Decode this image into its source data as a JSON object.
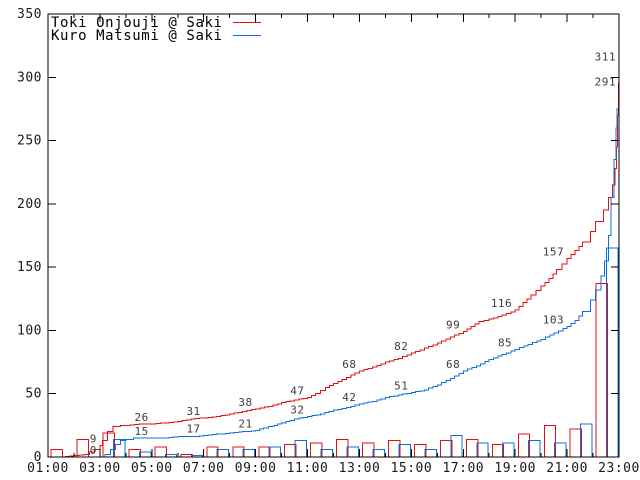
{
  "chart_data": {
    "type": "line",
    "legend": [
      {
        "label": "Toki Onjouji @ Saki",
        "color": "#e01010"
      },
      {
        "label": "Kuro Matsumi @ Saki",
        "color": "#0d6fdd"
      }
    ],
    "x_axis": {
      "hours_min": 1,
      "hours_max": 23,
      "major_tick_labels": [
        "01:00",
        "03:00",
        "05:00",
        "07:00",
        "09:00",
        "11:00",
        "13:00",
        "15:00",
        "17:00",
        "19:00",
        "21:00",
        "23:00"
      ]
    },
    "y_axis": {
      "min": 0,
      "max": 350,
      "tick_step": 50,
      "tick_labels": [
        "0",
        "50",
        "100",
        "150",
        "200",
        "250",
        "300",
        "350"
      ]
    },
    "series": [
      {
        "name": "Toki Onjouji @ Saki",
        "color": "#e01010",
        "points": [
          [
            1,
            0
          ],
          [
            1.5,
            0
          ],
          [
            2,
            1
          ],
          [
            2.4,
            2
          ],
          [
            2.6,
            4
          ],
          [
            2.8,
            6
          ],
          [
            3,
            9
          ],
          [
            3.1,
            13
          ],
          [
            3.3,
            20
          ],
          [
            3.5,
            24
          ],
          [
            3.8,
            25
          ],
          [
            4,
            25
          ],
          [
            4.5,
            26
          ],
          [
            5,
            26
          ],
          [
            5.5,
            27
          ],
          [
            6,
            28
          ],
          [
            6.5,
            30
          ],
          [
            7,
            31
          ],
          [
            7.5,
            32
          ],
          [
            8,
            34
          ],
          [
            8.5,
            36
          ],
          [
            9,
            38
          ],
          [
            9.5,
            40
          ],
          [
            10,
            43
          ],
          [
            10.5,
            45
          ],
          [
            11,
            47
          ],
          [
            11.3,
            50
          ],
          [
            11.7,
            55
          ],
          [
            12,
            58
          ],
          [
            12.5,
            63
          ],
          [
            13,
            68
          ],
          [
            13.5,
            71
          ],
          [
            14,
            75
          ],
          [
            14.5,
            78
          ],
          [
            15,
            82
          ],
          [
            15.5,
            86
          ],
          [
            16,
            90
          ],
          [
            16.5,
            95
          ],
          [
            17,
            99
          ],
          [
            17.3,
            103
          ],
          [
            17.6,
            107
          ],
          [
            18,
            109
          ],
          [
            18.5,
            112
          ],
          [
            19,
            116
          ],
          [
            19.3,
            122
          ],
          [
            19.6,
            128
          ],
          [
            20,
            135
          ],
          [
            20.3,
            141
          ],
          [
            20.6,
            148
          ],
          [
            21,
            157
          ],
          [
            21.3,
            163
          ],
          [
            21.6,
            170
          ],
          [
            21.9,
            178
          ],
          [
            22.1,
            186
          ],
          [
            22.4,
            195
          ],
          [
            22.6,
            205
          ],
          [
            22.75,
            215
          ],
          [
            22.85,
            228
          ],
          [
            22.9,
            245
          ],
          [
            22.95,
            270
          ],
          [
            22.98,
            295
          ],
          [
            23,
            311
          ]
        ],
        "point_labels": [
          [
            3,
            9
          ],
          [
            5,
            26
          ],
          [
            7,
            31
          ],
          [
            9,
            38
          ],
          [
            11,
            47
          ],
          [
            13,
            68
          ],
          [
            15,
            82
          ],
          [
            17,
            99
          ],
          [
            19,
            116
          ],
          [
            21,
            157
          ],
          [
            23,
            311
          ]
        ]
      },
      {
        "name": "Kuro Matsumi @ Saki",
        "color": "#0d6fdd",
        "points": [
          [
            1,
            0
          ],
          [
            3,
            0
          ],
          [
            3.2,
            2
          ],
          [
            3.4,
            6
          ],
          [
            3.6,
            10
          ],
          [
            3.8,
            13
          ],
          [
            4,
            14
          ],
          [
            4.3,
            15
          ],
          [
            5,
            15
          ],
          [
            5.5,
            15
          ],
          [
            6,
            16
          ],
          [
            6.5,
            16
          ],
          [
            7,
            17
          ],
          [
            7.5,
            18
          ],
          [
            8,
            19
          ],
          [
            8.5,
            20
          ],
          [
            9,
            21
          ],
          [
            9.3,
            23
          ],
          [
            9.7,
            25
          ],
          [
            10,
            27
          ],
          [
            10.5,
            30
          ],
          [
            11,
            32
          ],
          [
            11.5,
            34
          ],
          [
            12,
            37
          ],
          [
            12.5,
            39
          ],
          [
            13,
            42
          ],
          [
            13.5,
            44
          ],
          [
            14,
            47
          ],
          [
            14.5,
            49
          ],
          [
            15,
            51
          ],
          [
            15.5,
            53
          ],
          [
            16,
            57
          ],
          [
            16.5,
            62
          ],
          [
            17,
            68
          ],
          [
            17.5,
            72
          ],
          [
            18,
            77
          ],
          [
            18.5,
            81
          ],
          [
            19,
            85
          ],
          [
            19.5,
            89
          ],
          [
            20,
            93
          ],
          [
            20.5,
            98
          ],
          [
            21,
            103
          ],
          [
            21.3,
            108
          ],
          [
            21.6,
            115
          ],
          [
            21.9,
            124
          ],
          [
            22.1,
            132
          ],
          [
            22.3,
            143
          ],
          [
            22.45,
            155
          ],
          [
            22.6,
            175
          ],
          [
            22.7,
            205
          ],
          [
            22.8,
            235
          ],
          [
            22.88,
            260
          ],
          [
            22.93,
            275
          ],
          [
            23,
            291
          ]
        ],
        "point_labels": [
          [
            3,
            0
          ],
          [
            5,
            15
          ],
          [
            7,
            17
          ],
          [
            9,
            21
          ],
          [
            11,
            32
          ],
          [
            13,
            42
          ],
          [
            15,
            51
          ],
          [
            17,
            68
          ],
          [
            19,
            85
          ],
          [
            21,
            103
          ],
          [
            23,
            291
          ]
        ]
      }
    ],
    "hourly_bars": [
      {
        "hour": 1,
        "red": 6,
        "blue": 0
      },
      {
        "hour": 2,
        "red": 14,
        "blue": 0
      },
      {
        "hour": 3,
        "red": 19,
        "blue": 14
      },
      {
        "hour": 4,
        "red": 6,
        "blue": 4
      },
      {
        "hour": 5,
        "red": 8,
        "blue": 2
      },
      {
        "hour": 6,
        "red": 2,
        "blue": 1
      },
      {
        "hour": 7,
        "red": 8,
        "blue": 6
      },
      {
        "hour": 8,
        "red": 8,
        "blue": 6
      },
      {
        "hour": 9,
        "red": 8,
        "blue": 8
      },
      {
        "hour": 10,
        "red": 10,
        "blue": 13
      },
      {
        "hour": 11,
        "red": 11,
        "blue": 6
      },
      {
        "hour": 12,
        "red": 14,
        "blue": 8
      },
      {
        "hour": 13,
        "red": 11,
        "blue": 6
      },
      {
        "hour": 14,
        "red": 13,
        "blue": 10
      },
      {
        "hour": 15,
        "red": 10,
        "blue": 6
      },
      {
        "hour": 16,
        "red": 13,
        "blue": 17
      },
      {
        "hour": 17,
        "red": 14,
        "blue": 11
      },
      {
        "hour": 18,
        "red": 10,
        "blue": 11
      },
      {
        "hour": 19,
        "red": 18,
        "blue": 13
      },
      {
        "hour": 20,
        "red": 25,
        "blue": 11
      },
      {
        "hour": 21,
        "red": 22,
        "blue": 26
      },
      {
        "hour": 22,
        "red": 137,
        "blue": 165
      }
    ]
  }
}
